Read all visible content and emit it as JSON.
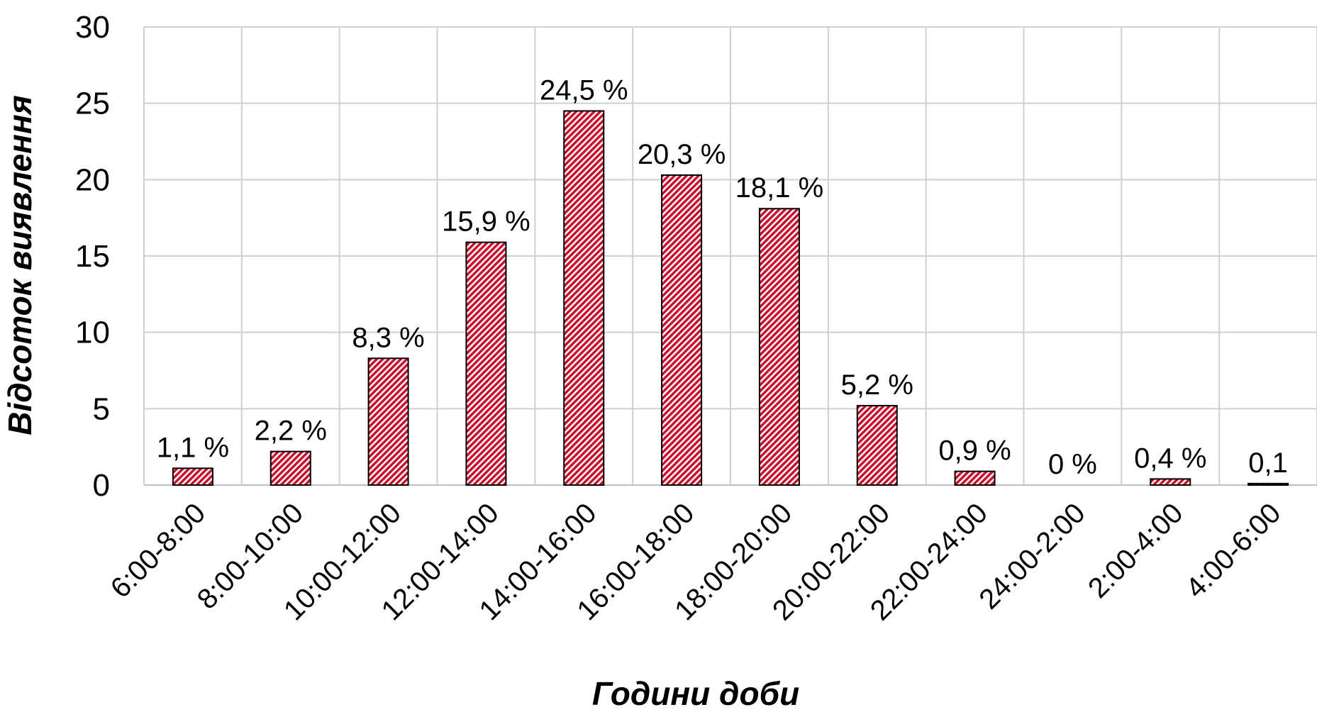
{
  "chart_data": {
    "type": "bar",
    "xlabel": "Години доби",
    "ylabel": "Відсоток виявлення",
    "ylim": [
      0,
      30
    ],
    "y_ticks": [
      0,
      5,
      10,
      15,
      20,
      25,
      30
    ],
    "grid": true,
    "categories": [
      "6:00-8:00",
      "8:00-10:00",
      "10:00-12:00",
      "12:00-14:00",
      "14:00-16:00",
      "16:00-18:00",
      "18:00-20:00",
      "20:00-22:00",
      "22:00-24:00",
      "24:00-2:00",
      "2:00-4:00",
      "4:00-6:00"
    ],
    "values": [
      1.1,
      2.2,
      8.3,
      15.9,
      24.5,
      20.3,
      18.1,
      5.2,
      0.9,
      0,
      0.4,
      0.1
    ],
    "data_labels": [
      "1,1 %",
      "2,2 %",
      "8,3 %",
      "15,9 %",
      "24,5 %",
      "20,3 %",
      "18,1 %",
      "5,2 %",
      "0,9 %",
      "0 %",
      "0,4 %",
      "0,1"
    ],
    "bar_fill": "#c8102e",
    "bar_pattern": "diagonal-hatch"
  }
}
